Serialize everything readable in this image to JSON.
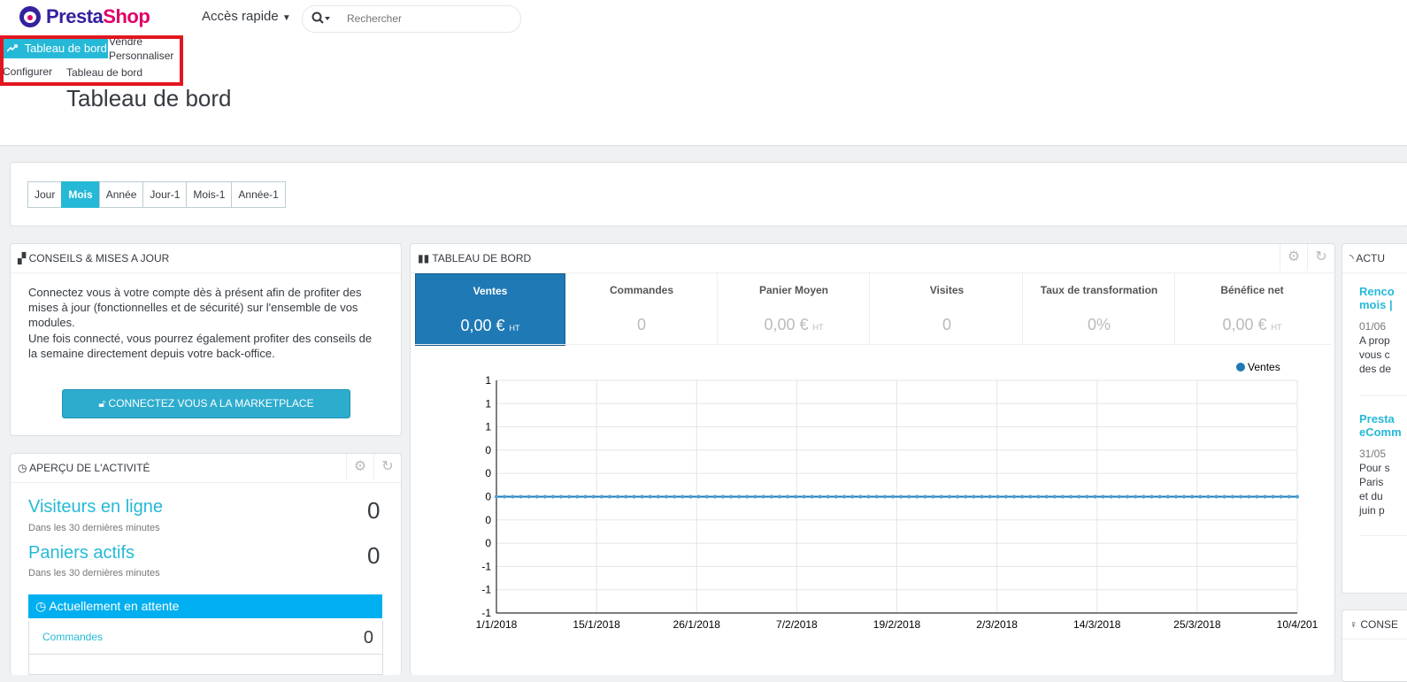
{
  "brand": {
    "presta": "Presta",
    "shop": "Shop"
  },
  "header": {
    "quick_access": "Accès rapide",
    "search_placeholder": "Rechercher"
  },
  "nav": {
    "active_tab": "Tableau de bord",
    "sell": "Vendre",
    "customize": "Personnaliser",
    "configure": "Configurer",
    "sub_dashboard": "Tableau de bord"
  },
  "page_title": "Tableau de bord",
  "periods": [
    {
      "label": "Jour"
    },
    {
      "label": "Mois",
      "active": true
    },
    {
      "label": "Année"
    },
    {
      "label": "Jour-1"
    },
    {
      "label": "Mois-1"
    },
    {
      "label": "Année-1"
    }
  ],
  "advice_panel": {
    "title": "CONSEILS & MISES A JOUR",
    "para1": "Connectez vous à votre compte dès à présent afin de profiter des mises à jour (fonctionnelles et de sécurité) sur l'ensemble de vos modules.",
    "para2": "Une fois connecté, vous pourrez également profiter des conseils de la semaine directement depuis votre back-office.",
    "button": "CONNECTEZ VOUS A LA MARKETPLACE PRESTASHOP"
  },
  "activity_panel": {
    "title": "APERÇU DE L'ACTIVITÉ",
    "visitors_label": "Visiteurs en ligne",
    "visitors_sub": "Dans les 30 dernières minutes",
    "visitors_value": "0",
    "carts_label": "Paniers actifs",
    "carts_sub": "Dans les 30 dernières minutes",
    "carts_value": "0",
    "waiting_title": "Actuellement en attente",
    "orders_label": "Commandes",
    "orders_value": "0"
  },
  "dashboard_panel": {
    "title": "TABLEAU DE BORD",
    "kpis": [
      {
        "label": "Ventes",
        "value": "0,00 €",
        "unit": "HT",
        "active": true
      },
      {
        "label": "Commandes",
        "value": "0",
        "unit": ""
      },
      {
        "label": "Panier Moyen",
        "value": "0,00 €",
        "unit": "HT"
      },
      {
        "label": "Visites",
        "value": "0",
        "unit": ""
      },
      {
        "label": "Taux de transformation",
        "value": "0%",
        "unit": ""
      },
      {
        "label": "Bénéfice net",
        "value": "0,00 €",
        "unit": "HT"
      }
    ]
  },
  "news_panel": {
    "title": "ACTU",
    "item1_title_a": "Renco",
    "item1_title_b": "mois |",
    "item1_date": "01/06",
    "item1_text": [
      "A prop",
      "vous c",
      "des de"
    ],
    "item2_title_a": "Presta",
    "item2_title_b": "eComm",
    "item2_date": "31/05",
    "item2_text": [
      "Pour s",
      "Paris",
      "et du",
      "juin p"
    ]
  },
  "tips_panel": {
    "title": "CONSE"
  },
  "colors": {
    "accent": "#25b9d7",
    "series": "#1f79b5",
    "highlight": "#e2161f"
  },
  "chart_data": {
    "type": "line",
    "x": [
      "1/1/2018",
      "15/1/2018",
      "26/1/2018",
      "7/2/2018",
      "19/2/2018",
      "2/3/2018",
      "14/3/2018",
      "25/3/2018",
      "10/4/201"
    ],
    "series": [
      {
        "name": "Ventes",
        "values": [
          0,
          0,
          0,
          0,
          0,
          0,
          0,
          0,
          0
        ]
      }
    ],
    "y_tick_labels": [
      "1",
      "1",
      "1",
      "0",
      "0",
      "0",
      "0",
      "0",
      "-1",
      "-1",
      "-1"
    ],
    "ylim": [
      -1,
      1
    ],
    "grid": true,
    "legend": "top-right"
  }
}
